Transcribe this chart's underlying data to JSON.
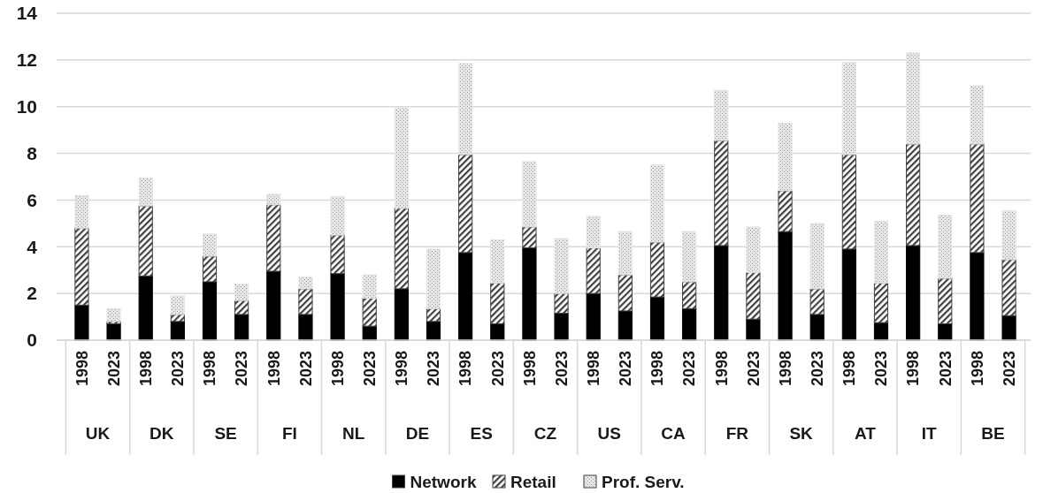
{
  "chart_data": {
    "type": "bar",
    "stacked": true,
    "grid": "y",
    "legend": "bottom",
    "categories": [
      "1998",
      "2023",
      "1998",
      "2023",
      "1998",
      "2023",
      "1998",
      "2023",
      "1998",
      "2023",
      "1998",
      "2023",
      "1998",
      "2023",
      "1998",
      "2023",
      "1998",
      "2023",
      "1998",
      "2023",
      "1998",
      "2023",
      "1998",
      "2023",
      "1998",
      "2023",
      "1998",
      "2023",
      "1998",
      "2023"
    ],
    "annotations": [
      "UK",
      "DK",
      "SE",
      "FI",
      "NL",
      "DE",
      "ES",
      "CZ",
      "US",
      "CA",
      "FR",
      "SK",
      "AT",
      "IT",
      "BE"
    ],
    "ylim": [
      0,
      14
    ],
    "yticks": [
      0,
      2,
      4,
      6,
      8,
      10,
      12,
      14
    ],
    "series": [
      {
        "name": "Network",
        "color": "#000000",
        "values": [
          1.5,
          0.7,
          2.75,
          0.8,
          2.5,
          1.1,
          2.95,
          1.1,
          2.85,
          0.6,
          2.2,
          0.8,
          3.75,
          0.7,
          3.95,
          1.15,
          2.0,
          1.25,
          1.85,
          1.35,
          4.05,
          0.9,
          4.65,
          1.1,
          3.9,
          0.75,
          4.05,
          0.7,
          3.75,
          1.05
        ]
      },
      {
        "name": "Retail",
        "color": "#404040",
        "values": [
          3.3,
          0.1,
          3.0,
          0.3,
          1.1,
          0.6,
          2.85,
          1.1,
          1.65,
          1.2,
          3.45,
          0.55,
          4.2,
          1.75,
          0.9,
          0.85,
          1.95,
          1.55,
          2.35,
          1.15,
          4.5,
          2.0,
          1.75,
          1.1,
          4.05,
          1.7,
          4.35,
          1.95,
          4.65,
          2.4
        ]
      },
      {
        "name": "Prof. Serv.",
        "color": "#e6e6e6",
        "values": [
          1.4,
          0.55,
          1.2,
          0.8,
          0.95,
          0.7,
          0.45,
          0.5,
          1.65,
          1.0,
          4.3,
          2.55,
          3.9,
          1.85,
          2.8,
          2.35,
          1.35,
          1.85,
          3.3,
          2.15,
          2.15,
          1.95,
          2.9,
          2.8,
          3.95,
          2.65,
          3.9,
          2.7,
          2.5,
          2.1
        ]
      }
    ]
  }
}
